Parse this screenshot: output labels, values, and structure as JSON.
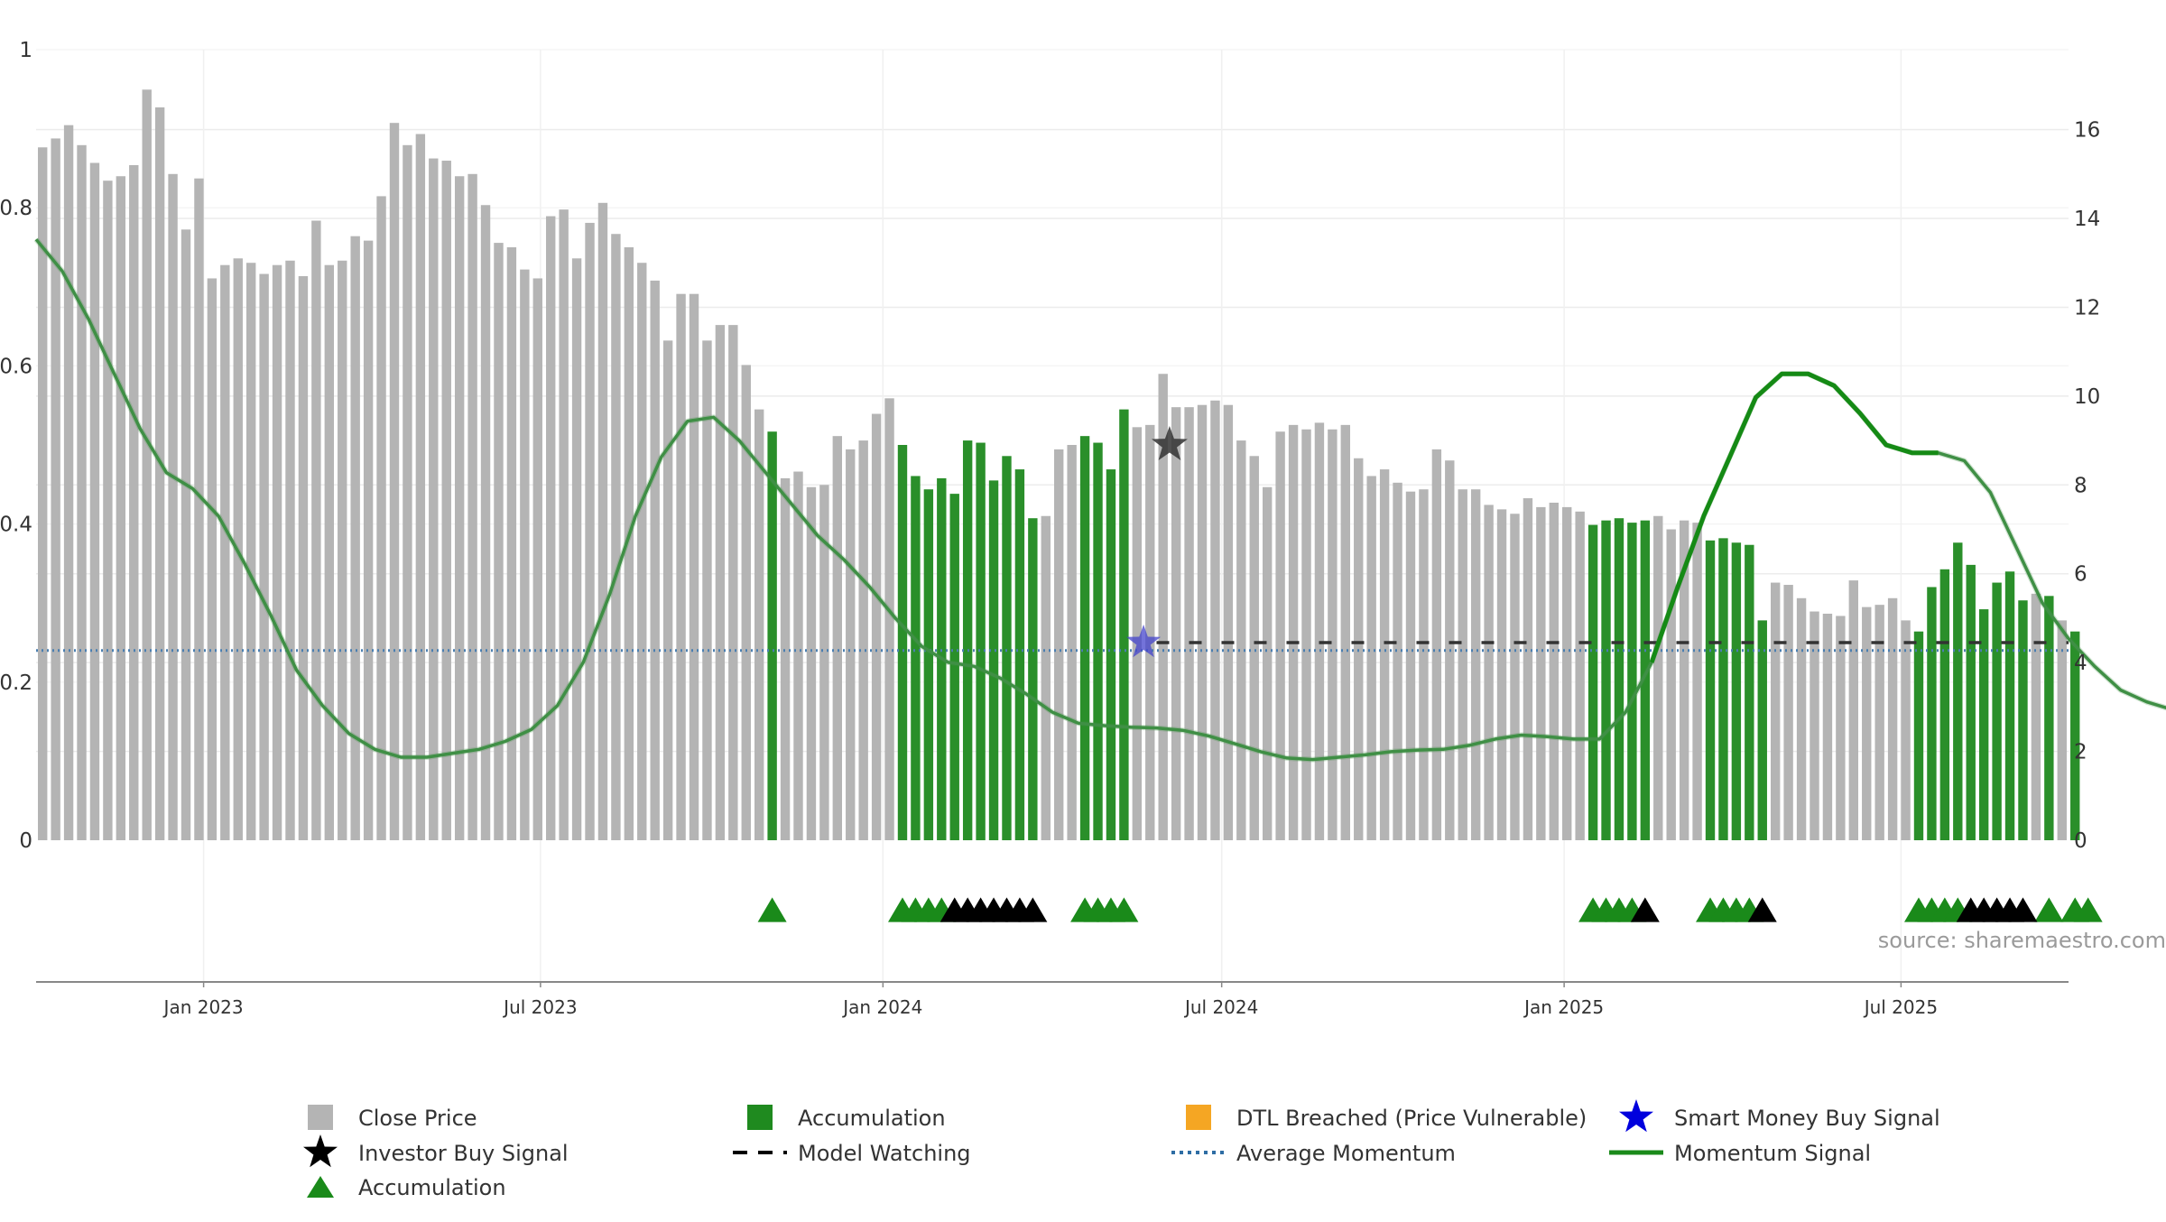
{
  "chart_data": {
    "type": "bar",
    "source": "source: sharemaestro.com",
    "y_left": {
      "ticks": [
        0,
        0.2,
        0.4,
        0.6,
        0.8,
        1
      ],
      "labels": [
        "0",
        "0.2",
        "0.4",
        "0.6",
        "0.8",
        "1"
      ],
      "ylim": [
        0,
        1
      ]
    },
    "y_right": {
      "ticks": [
        0,
        2,
        4,
        6,
        8,
        10,
        12,
        14,
        16
      ],
      "labels": [
        "0",
        "2",
        "4",
        "6",
        "8",
        "10",
        "12",
        "14",
        "16"
      ],
      "ylim": [
        0,
        17.8
      ]
    },
    "x_axis": {
      "range": [
        "2022-10-03",
        "2025-09-29"
      ],
      "ticks": [
        {
          "date": "2023-01-01",
          "label": "Jan 2023"
        },
        {
          "date": "2023-07-01",
          "label": "Jul 2023"
        },
        {
          "date": "2024-01-01",
          "label": "Jan 2024"
        },
        {
          "date": "2024-07-01",
          "label": "Jul 2024"
        },
        {
          "date": "2025-01-01",
          "label": "Jan 2025"
        },
        {
          "date": "2025-07-01",
          "label": "Jul 2025"
        }
      ]
    },
    "bars": {
      "start": "2022-10-03",
      "interval_days": 7,
      "close": [
        15.6,
        15.8,
        16.1,
        15.65,
        15.25,
        14.85,
        14.95,
        15.2,
        16.9,
        16.5,
        15.0,
        13.75,
        14.9,
        12.65,
        12.95,
        13.1,
        13.0,
        12.75,
        12.95,
        13.05,
        12.7,
        13.95,
        12.95,
        13.05,
        13.6,
        13.5,
        14.5,
        16.15,
        15.65,
        15.9,
        15.35,
        15.3,
        14.95,
        15.0,
        14.3,
        13.45,
        13.35,
        12.85,
        12.65,
        14.05,
        14.2,
        13.1,
        13.9,
        14.35,
        13.65,
        13.35,
        13.0,
        12.6,
        11.25,
        12.3,
        12.3,
        11.25,
        11.6,
        11.6,
        10.7,
        9.7,
        9.2,
        8.15,
        8.3,
        7.95,
        8.0,
        9.1,
        8.8,
        9.0,
        9.6,
        9.95,
        8.9,
        8.2,
        7.9,
        8.15,
        7.8,
        9.0,
        8.95,
        8.1,
        8.65,
        8.35,
        7.25,
        7.3,
        8.8,
        8.9,
        9.1,
        8.95,
        8.35,
        9.7,
        9.3,
        9.35,
        10.5,
        9.75,
        9.75,
        9.8,
        9.9,
        9.8,
        9.0,
        8.65,
        7.95,
        9.2,
        9.35,
        9.25,
        9.4,
        9.25,
        9.35,
        8.6,
        8.2,
        8.35,
        8.05,
        7.85,
        7.9,
        8.8,
        8.55,
        7.9,
        7.9,
        7.55,
        7.45,
        7.35,
        7.7,
        7.5,
        7.6,
        7.5,
        7.4,
        7.1,
        7.2,
        7.25,
        7.15,
        7.2,
        7.3,
        7.0,
        7.2,
        7.15,
        6.75,
        6.8,
        6.7,
        6.65,
        4.95,
        5.8,
        5.75,
        5.45,
        5.15,
        5.1,
        5.05,
        5.85,
        5.25,
        5.3,
        5.45,
        4.95,
        4.7,
        5.7,
        6.1,
        6.7,
        6.2,
        5.2,
        5.8,
        6.05,
        5.4,
        5.55,
        5.5,
        4.95,
        4.7
      ],
      "accumulation_ranges": [
        [
          56,
          56
        ],
        [
          66,
          76
        ],
        [
          80,
          83
        ],
        [
          119,
          123
        ],
        [
          128,
          132
        ],
        [
          144,
          152
        ],
        [
          154,
          154
        ],
        [
          156,
          157
        ]
      ]
    },
    "momentum": {
      "interval_days": 14,
      "values": [
        0.76,
        0.72,
        0.66,
        0.59,
        0.52,
        0.465,
        0.445,
        0.41,
        0.35,
        0.285,
        0.215,
        0.17,
        0.135,
        0.115,
        0.105,
        0.105,
        0.11,
        0.115,
        0.125,
        0.14,
        0.17,
        0.225,
        0.31,
        0.41,
        0.485,
        0.53,
        0.535,
        0.505,
        0.465,
        0.425,
        0.385,
        0.355,
        0.32,
        0.28,
        0.245,
        0.225,
        0.22,
        0.205,
        0.185,
        0.162,
        0.148,
        0.145,
        0.143,
        0.142,
        0.139,
        0.132,
        0.122,
        0.112,
        0.104,
        0.102,
        0.105,
        0.108,
        0.112,
        0.114,
        0.115,
        0.12,
        0.128,
        0.133,
        0.131,
        0.128,
        0.128,
        0.162,
        0.225,
        0.32,
        0.41,
        0.485,
        0.56,
        0.59,
        0.59,
        0.575,
        0.54,
        0.5,
        0.49,
        0.49,
        0.48,
        0.44,
        0.37,
        0.3,
        0.255,
        0.22,
        0.19,
        0.175,
        0.165,
        0.155,
        0.14,
        0.12,
        0.103,
        0.1,
        0.112,
        0.135,
        0.15,
        0.145,
        0.125,
        0.112,
        0.11,
        0.12,
        0.14,
        0.153,
        0.159,
        0.153,
        0.135,
        0.118,
        0.105,
        0.096,
        0.093,
        0.09,
        0.09,
        0.091,
        0.096,
        0.108,
        0.12,
        0.128,
        0.135,
        0.137,
        0.112,
        0.112,
        0.115,
        0.145
      ],
      "highlight_range": [
        62,
        73
      ]
    },
    "average_momentum": 0.24,
    "model_watching": {
      "start": "2024-05-27",
      "end": "2025-09-29",
      "value": 0.25
    },
    "smart_money_buy_signal": {
      "date": "2024-05-20",
      "value": 0.25
    },
    "investor_buy_signal": {
      "date": "2024-06-03",
      "value": 0.5
    },
    "marker_row": {
      "accumulation_weeks": [
        56,
        66,
        67,
        68,
        69,
        80,
        81,
        82,
        83,
        119,
        120,
        121,
        122,
        128,
        129,
        130,
        131,
        144,
        145,
        146,
        147,
        154,
        156,
        157
      ],
      "investor_weeks": [
        70,
        71,
        72,
        73,
        74,
        75,
        76,
        123,
        132,
        148,
        149,
        150,
        151,
        152
      ]
    },
    "legend": [
      {
        "label": "Close Price",
        "symbol": "square",
        "color": "#b4b4b4"
      },
      {
        "label": "Accumulation",
        "symbol": "square",
        "color": "#1f8a1f"
      },
      {
        "label": "DTL Breached (Price Vulnerable)",
        "symbol": "square",
        "color": "#f5a623"
      },
      {
        "label": "Smart Money Buy Signal",
        "symbol": "star",
        "color": "#0000dd"
      },
      {
        "label": "Investor Buy Signal",
        "symbol": "star",
        "color": "#000000"
      },
      {
        "label": "Model Watching",
        "symbol": "dash",
        "color": "#000000"
      },
      {
        "label": "Average Momentum",
        "symbol": "dotted",
        "color": "#2e6da4"
      },
      {
        "label": "Momentum Signal",
        "symbol": "line",
        "color": "#1a8a1a"
      },
      {
        "label": "Accumulation",
        "symbol": "triangle",
        "color": "#1a8a1a"
      }
    ],
    "colors": {
      "close": "#b4b4b4",
      "accumulation": "#2a8f2a",
      "momentum": "#3f8f45",
      "momentum_highlight": "#158a15",
      "average": "#4a7fb0",
      "investor": "#111111",
      "smart_money": "#4444cc"
    }
  }
}
